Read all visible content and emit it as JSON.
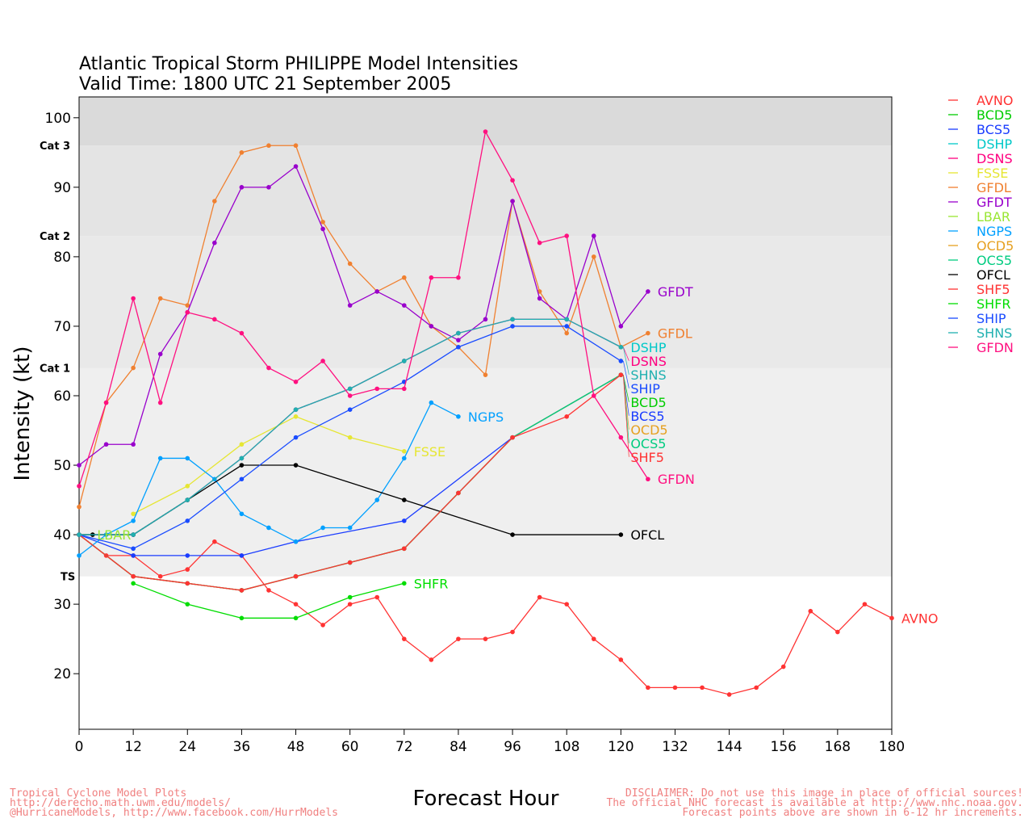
{
  "chart_data": {
    "type": "line",
    "title": "Atlantic Tropical Storm PHILIPPE Model Intensities",
    "subtitle": "Valid Time: 1800 UTC 21 September 2005",
    "xlabel": "Forecast Hour",
    "ylabel": "Intensity (kt)",
    "xlim": [
      0,
      180
    ],
    "ylim": [
      12,
      103
    ],
    "xticks": [
      0,
      12,
      24,
      36,
      48,
      60,
      72,
      84,
      96,
      108,
      120,
      132,
      144,
      156,
      168,
      180
    ],
    "yticks": [
      20,
      30,
      40,
      50,
      60,
      70,
      80,
      90,
      100
    ],
    "categories": [
      {
        "label": "TS",
        "kt": 34
      },
      {
        "label": "Cat 1",
        "kt": 64
      },
      {
        "label": "Cat 2",
        "kt": 83
      },
      {
        "label": "Cat 3",
        "kt": 96
      }
    ],
    "legend_position": "right",
    "series": [
      {
        "name": "AVNO",
        "color": "#ff3333",
        "x": [
          0,
          6,
          12,
          18,
          24,
          30,
          36,
          42,
          48,
          54,
          60,
          66,
          72,
          78,
          84,
          90,
          96,
          102,
          108,
          114,
          120,
          126,
          132,
          138,
          144,
          150,
          156,
          162,
          168,
          174,
          180
        ],
        "y": [
          40,
          37,
          37,
          34,
          35,
          39,
          37,
          32,
          30,
          27,
          30,
          31,
          25,
          22,
          25,
          25,
          26,
          31,
          30,
          25,
          22,
          18,
          18,
          18,
          17,
          18,
          21,
          29,
          26,
          30,
          28
        ]
      },
      {
        "name": "BCD5",
        "color": "#00cc00",
        "x": [
          0,
          12,
          24,
          36,
          48,
          60,
          72,
          84,
          96,
          120
        ],
        "y": [
          40,
          34,
          33,
          32,
          34,
          36,
          38,
          46,
          54,
          63
        ]
      },
      {
        "name": "BCS5",
        "color": "#1a3cff",
        "x": [
          0,
          12,
          24,
          36,
          48,
          72,
          96,
          120
        ],
        "y": [
          40,
          37,
          37,
          37,
          39,
          42,
          54,
          63
        ]
      },
      {
        "name": "DSHP",
        "color": "#00c8c8",
        "x": [
          0,
          12,
          24,
          36,
          48,
          60,
          72,
          84,
          96,
          108,
          120
        ],
        "y": [
          40,
          40,
          45,
          51,
          58,
          61,
          65,
          69,
          71,
          71,
          67
        ]
      },
      {
        "name": "DSNS",
        "color": "#ff0080",
        "x": [
          0,
          12,
          24,
          36,
          48,
          60,
          72,
          84,
          96,
          108,
          120
        ],
        "y": [
          40,
          40,
          45,
          51,
          58,
          61,
          65,
          69,
          71,
          71,
          67
        ]
      },
      {
        "name": "FSSE",
        "color": "#e6e633",
        "x": [
          12,
          24,
          36,
          48,
          60,
          72
        ],
        "y": [
          43,
          47,
          53,
          57,
          54,
          52
        ]
      },
      {
        "name": "GFDL",
        "color": "#f08030",
        "x": [
          0,
          6,
          12,
          18,
          24,
          30,
          36,
          42,
          48,
          54,
          60,
          66,
          72,
          78,
          84,
          90,
          96,
          102,
          108,
          114,
          120,
          126
        ],
        "y": [
          44,
          59,
          64,
          74,
          73,
          88,
          95,
          96,
          96,
          85,
          79,
          75,
          77,
          70,
          67,
          63,
          88,
          75,
          69,
          80,
          67,
          69
        ]
      },
      {
        "name": "GFDT",
        "color": "#9900cc",
        "x": [
          0,
          6,
          12,
          18,
          24,
          30,
          36,
          42,
          48,
          54,
          60,
          66,
          72,
          78,
          84,
          90,
          96,
          102,
          108,
          114,
          120,
          126
        ],
        "y": [
          50,
          53,
          53,
          66,
          72,
          82,
          90,
          90,
          93,
          84,
          73,
          75,
          73,
          70,
          68,
          71,
          88,
          74,
          71,
          83,
          70,
          75
        ]
      },
      {
        "name": "LBAR",
        "color": "#99e633",
        "x": [
          0,
          3
        ],
        "y": [
          40,
          40
        ]
      },
      {
        "name": "NGPS",
        "color": "#00a0ff",
        "x": [
          0,
          6,
          12,
          18,
          24,
          30,
          36,
          42,
          48,
          54,
          60,
          66,
          72,
          78,
          84
        ],
        "y": [
          37,
          40,
          42,
          51,
          51,
          48,
          43,
          41,
          39,
          41,
          41,
          45,
          51,
          59,
          57
        ]
      },
      {
        "name": "OCD5",
        "color": "#e6a020",
        "x": [
          0,
          12,
          24,
          36,
          48,
          60,
          72,
          84,
          96,
          120
        ],
        "y": [
          40,
          34,
          33,
          32,
          34,
          36,
          38,
          46,
          54,
          63
        ]
      },
      {
        "name": "OCS5",
        "color": "#00cc80",
        "x": [
          0,
          12,
          24,
          36,
          48,
          60,
          72,
          84,
          96,
          120
        ],
        "y": [
          40,
          34,
          33,
          32,
          34,
          36,
          38,
          46,
          54,
          63
        ]
      },
      {
        "name": "OFCL",
        "color": "#000000",
        "x": [
          0,
          3,
          12,
          24,
          36,
          48,
          72,
          96,
          120
        ],
        "y": [
          40,
          40,
          40,
          45,
          50,
          50,
          45,
          40,
          40
        ]
      },
      {
        "name": "SHF5",
        "color": "#ff3333",
        "x": [
          0,
          12,
          24,
          36,
          48,
          60,
          72,
          84,
          96,
          108,
          120
        ],
        "y": [
          40,
          34,
          33,
          32,
          34,
          36,
          38,
          46,
          54,
          57,
          63
        ]
      },
      {
        "name": "SHFR",
        "color": "#00dd00",
        "x": [
          12,
          24,
          36,
          48,
          60,
          72
        ],
        "y": [
          33,
          30,
          28,
          28,
          31,
          33
        ]
      },
      {
        "name": "SHIP",
        "color": "#1a4cff",
        "x": [
          0,
          12,
          24,
          36,
          48,
          60,
          72,
          84,
          96,
          108,
          120
        ],
        "y": [
          40,
          38,
          42,
          48,
          54,
          58,
          62,
          67,
          70,
          70,
          65
        ]
      },
      {
        "name": "SHNS",
        "color": "#20b0b0",
        "x": [
          0,
          12,
          24,
          36,
          48,
          60,
          72,
          84,
          96,
          108,
          120
        ],
        "y": [
          40,
          40,
          45,
          51,
          58,
          61,
          65,
          69,
          71,
          71,
          67
        ]
      },
      {
        "name": "GFDN",
        "color": "#ff1080",
        "x": [
          0,
          6,
          12,
          18,
          24,
          30,
          36,
          42,
          48,
          54,
          60,
          66,
          72,
          78,
          84,
          90,
          96,
          102,
          108,
          114,
          120,
          126
        ],
        "y": [
          47,
          59,
          74,
          59,
          72,
          71,
          69,
          64,
          62,
          65,
          60,
          61,
          61,
          77,
          77,
          98,
          91,
          82,
          83,
          60,
          54,
          48
        ]
      }
    ]
  },
  "footer": {
    "left": [
      "Tropical Cyclone Model Plots",
      "http://derecho.math.uwm.edu/models/",
      "@HurricaneModels, http://www.facebook.com/HurrModels"
    ],
    "right": [
      "DISCLAIMER: Do not use this image in place of official sources!",
      "The official NHC forecast is available at http://www.nhc.noaa.gov.",
      "Forecast points above are shown in 6-12 hr increments."
    ]
  }
}
